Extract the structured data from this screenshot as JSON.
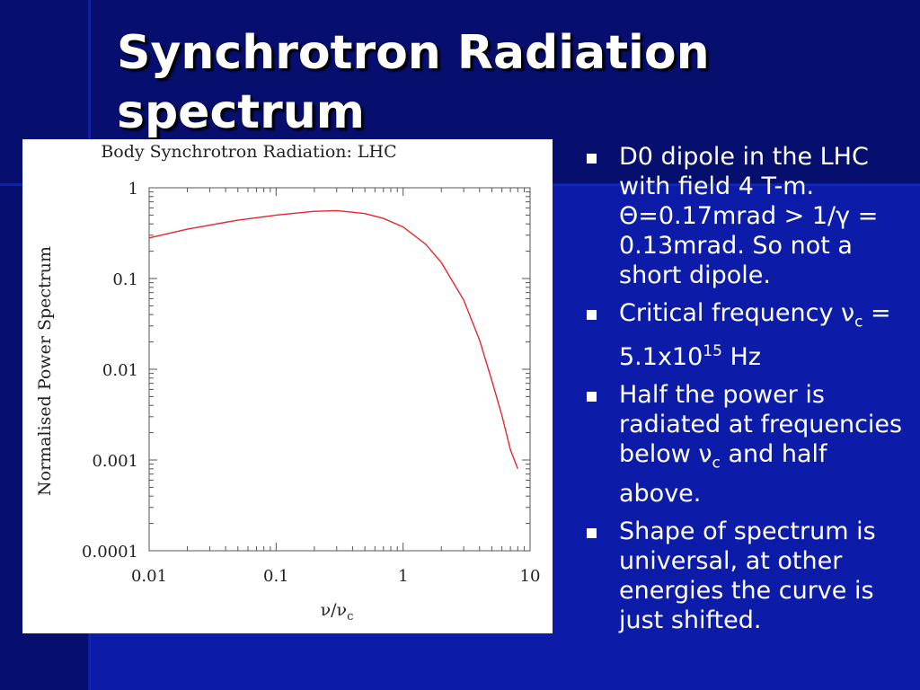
{
  "slide": {
    "title": "Synchrotron Radiation spectrum"
  },
  "bullets": [
    {
      "text": "D0 dipole in the LHC with field 4 T-m. Θ=0.17mrad > 1/γ = 0.13mrad. So not a short dipole."
    },
    {
      "parts": [
        "Critical frequency ν",
        "c",
        " = 5.1x10",
        "15",
        " Hz"
      ]
    },
    {
      "parts": [
        "Half the power is radiated at frequencies below ν",
        "c",
        " and half above."
      ]
    },
    {
      "text": "Shape of spectrum is universal, at other energies the curve is just shifted."
    }
  ],
  "chart_data": {
    "type": "line",
    "title": "Body Synchrotron Radiation: LHC",
    "xlabel": "ν/ν",
    "xlabel_sub": "c",
    "ylabel": "Normalised Power Spectrum",
    "xscale": "log",
    "yscale": "log",
    "xlim": [
      0.01,
      10
    ],
    "ylim": [
      0.0001,
      1
    ],
    "x_ticks": [
      "0.01",
      "0.1",
      "1",
      "10"
    ],
    "y_ticks": [
      "1",
      "0.1",
      "0.01",
      "0.001",
      "0.0001"
    ],
    "grid": false,
    "line_color": "#e8262b",
    "series": [
      {
        "x": [
          0.01,
          0.02,
          0.05,
          0.1,
          0.2,
          0.3,
          0.5,
          0.7,
          1.0,
          1.5,
          2.0,
          3.0,
          4.0,
          5.0,
          6.0,
          7.0,
          8.0
        ],
        "y": [
          0.28,
          0.35,
          0.44,
          0.5,
          0.55,
          0.56,
          0.52,
          0.46,
          0.37,
          0.24,
          0.15,
          0.058,
          0.021,
          0.0075,
          0.0031,
          0.0013,
          0.0008
        ]
      }
    ]
  }
}
